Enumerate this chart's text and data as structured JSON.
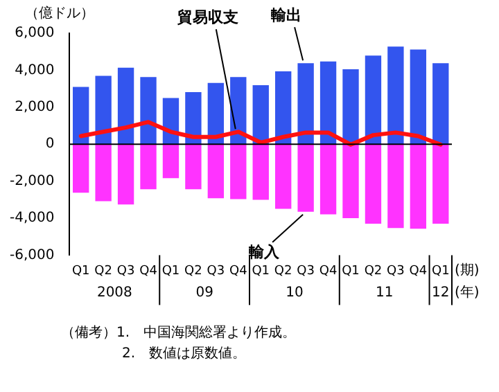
{
  "chart_data": {
    "type": "bar",
    "ylabel": "（億ドル）",
    "categories": [
      "Q1",
      "Q2",
      "Q3",
      "Q4",
      "Q1",
      "Q2",
      "Q3",
      "Q4",
      "Q1",
      "Q2",
      "Q3",
      "Q4",
      "Q1",
      "Q2",
      "Q3",
      "Q4",
      "Q1"
    ],
    "series": [
      {
        "name": "輸出",
        "color": "#3355ee",
        "values": [
          3100,
          3700,
          4140,
          3630,
          2500,
          2820,
          3310,
          3630,
          3190,
          3940,
          4380,
          4470,
          4050,
          4790,
          5280,
          5120,
          4380
        ]
      },
      {
        "name": "輸入",
        "color": "#ff33ff",
        "values": [
          -2620,
          -3080,
          -3260,
          -2440,
          -1840,
          -2440,
          -2920,
          -2970,
          -3010,
          -3490,
          -3650,
          -3790,
          -4000,
          -4300,
          -4530,
          -4570,
          -4300
        ]
      },
      {
        "name": "貿易収支",
        "type": "line",
        "color": "#ff1111",
        "values": [
          440,
          670,
          900,
          1200,
          670,
          390,
          390,
          670,
          90,
          390,
          630,
          630,
          -20,
          490,
          630,
          440,
          -20
        ]
      }
    ],
    "ylim": [
      -6000,
      6000
    ],
    "yticks": [
      {
        "value": -6000,
        "label": "-6,000"
      },
      {
        "value": -4000,
        "label": "-4,000"
      },
      {
        "value": -2000,
        "label": "-2,000"
      },
      0,
      {
        "value": 2000,
        "label": "2,000"
      },
      {
        "value": 4000,
        "label": "4,000"
      },
      {
        "value": 6000,
        "label": "6,000"
      }
    ],
    "stacked": true,
    "ref_lines": [
      {
        "axis": "y",
        "value": 0,
        "color": "#000000"
      }
    ],
    "grid": false,
    "legend": false,
    "annotations": [
      "(期)",
      "(年)",
      "2008",
      "09",
      "10",
      "11",
      "12",
      "（備考）1.　中国海関総署より作成。",
      "2.　数値は原数値。"
    ]
  }
}
